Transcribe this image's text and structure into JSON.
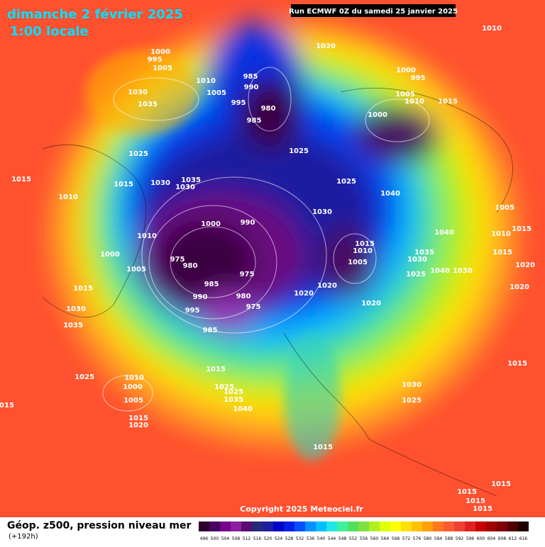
{
  "header": {
    "title": "dimanche 2 février 2025",
    "subtitle": "1:00 locale",
    "run": "Run ECMWF 0Z du samedi 25 janvier 2025"
  },
  "copyright": "Copyright 2025 Meteociel.fr",
  "footer": {
    "label": "Géop. z500, pression niveau mer",
    "lead": "(+192h)"
  },
  "legend": {
    "items": [
      {
        "value": 496,
        "color": "#2d0030"
      },
      {
        "value": 500,
        "color": "#480060"
      },
      {
        "value": 504,
        "color": "#780090"
      },
      {
        "value": 508,
        "color": "#8c20a0"
      },
      {
        "value": 512,
        "color": "#5a0a70"
      },
      {
        "value": 516,
        "color": "#282878"
      },
      {
        "value": 520,
        "color": "#1e1ea0"
      },
      {
        "value": 524,
        "color": "#0000c8"
      },
      {
        "value": 528,
        "color": "#0020e6"
      },
      {
        "value": 532,
        "color": "#0050ff"
      },
      {
        "value": 536,
        "color": "#0090ff"
      },
      {
        "value": 540,
        "color": "#00c0ff"
      },
      {
        "value": 544,
        "color": "#20e6e6"
      },
      {
        "value": 548,
        "color": "#40f0a0"
      },
      {
        "value": 552,
        "color": "#50e060"
      },
      {
        "value": 556,
        "color": "#80e040"
      },
      {
        "value": 560,
        "color": "#b0f020"
      },
      {
        "value": 564,
        "color": "#e0ff00"
      },
      {
        "value": 568,
        "color": "#ffff00"
      },
      {
        "value": 572,
        "color": "#ffe000"
      },
      {
        "value": 576,
        "color": "#ffc000"
      },
      {
        "value": 580,
        "color": "#ffa000"
      },
      {
        "value": 584,
        "color": "#ff7820"
      },
      {
        "value": 588,
        "color": "#ff5a30"
      },
      {
        "value": 592,
        "color": "#f04030"
      },
      {
        "value": 596,
        "color": "#e02020"
      },
      {
        "value": 600,
        "color": "#c80000"
      },
      {
        "value": 604,
        "color": "#a00000"
      },
      {
        "value": 608,
        "color": "#800000"
      },
      {
        "value": 612,
        "color": "#500000"
      },
      {
        "value": 616,
        "color": "#200000"
      }
    ]
  },
  "pressure_labels": [
    "1010",
    "1020",
    "1000",
    "995",
    "1005",
    "985",
    "990",
    "1010",
    "1005",
    "1000",
    "995",
    "1005",
    "1010",
    "1015",
    "1030",
    "1035",
    "995",
    "980",
    "985",
    "1000",
    "1025",
    "1025",
    "1015",
    "1035",
    "1030",
    "1030",
    "1015",
    "1025",
    "1040",
    "1010",
    "1005",
    "1030",
    "1000",
    "990",
    "1040",
    "1010",
    "1015",
    "1010",
    "1015",
    "1010",
    "1035",
    "1015",
    "1000",
    "975",
    "1030",
    "1005",
    "980",
    "1005",
    "975",
    "1025",
    "1040",
    "1030",
    "1020",
    "985",
    "1020",
    "1020",
    "1015",
    "1020",
    "990",
    "980",
    "1020",
    "975",
    "995",
    "1030",
    "1035",
    "985",
    "1015",
    "1015",
    "1025",
    "1010",
    "1000",
    "1025",
    "1030",
    "1025",
    "1035",
    "1005",
    "1025",
    "1015",
    "1040",
    "1015",
    "1020",
    "1015",
    "1015",
    "1015",
    "1015",
    "1015"
  ]
}
